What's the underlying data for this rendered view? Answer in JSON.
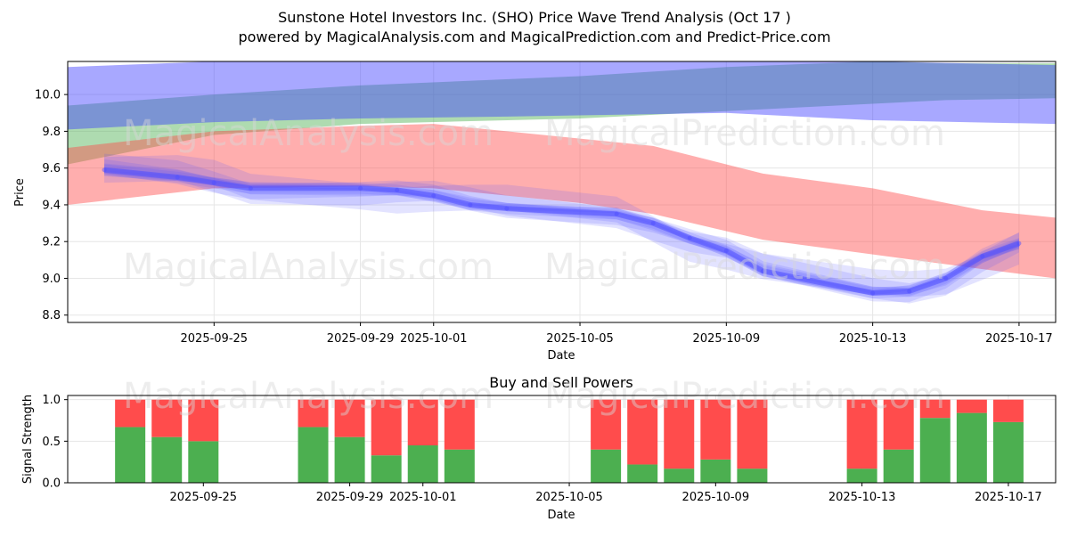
{
  "title_line1": "Sunstone Hotel Investors Inc. (SHO) Price Wave Trend Analysis (Oct 17 )",
  "title_line2": "powered by MagicalAnalysis.com and MagicalPrediction.com and Predict-Price.com",
  "watermarks": [
    "MagicalAnalysis.com",
    "MagicalPrediction.com"
  ],
  "colors": {
    "green_band": "#4caf50",
    "blue_band": "#3f3fff",
    "red_band": "#ff4c4c",
    "price_wave": "#5050ff",
    "buy": "#4caf50",
    "sell": "#ff4c4c",
    "grid": "#e6e6e6"
  },
  "chart_data": [
    {
      "type": "line",
      "title": "",
      "xlabel": "Date",
      "ylabel": "Price",
      "xlim": [
        "2025-09-21",
        "2025-10-18"
      ],
      "ylim": [
        8.76,
        10.18
      ],
      "yticks": [
        8.8,
        9.0,
        9.2,
        9.4,
        9.6,
        9.8,
        10.0
      ],
      "ytick_labels": [
        "8.8",
        "9.0",
        "9.2",
        "9.4",
        "9.6",
        "9.8",
        "10.0"
      ],
      "xticks": [
        "2025-09-25",
        "2025-09-29",
        "2025-10-01",
        "2025-10-05",
        "2025-10-09",
        "2025-10-13",
        "2025-10-17"
      ],
      "grid": true,
      "bands": [
        {
          "name": "green",
          "x": [
            "2025-09-21",
            "2025-09-25",
            "2025-09-29",
            "2025-10-05",
            "2025-10-09",
            "2025-10-13",
            "2025-10-15",
            "2025-10-18"
          ],
          "upper": [
            9.94,
            10.0,
            10.05,
            10.1,
            10.15,
            10.18,
            10.17,
            10.17
          ],
          "lower": [
            9.62,
            9.78,
            9.84,
            9.87,
            9.91,
            9.95,
            9.97,
            9.98
          ]
        },
        {
          "name": "blue",
          "x": [
            "2025-09-21",
            "2025-09-25",
            "2025-09-29",
            "2025-10-03",
            "2025-10-09",
            "2025-10-13",
            "2025-10-18"
          ],
          "upper": [
            10.15,
            10.18,
            10.2,
            10.2,
            10.2,
            10.18,
            10.16
          ],
          "lower": [
            9.81,
            9.85,
            9.87,
            9.88,
            9.9,
            9.86,
            9.84
          ]
        },
        {
          "name": "red",
          "x": [
            "2025-09-21",
            "2025-09-25",
            "2025-09-29",
            "2025-10-01",
            "2025-10-05",
            "2025-10-07",
            "2025-10-10",
            "2025-10-13",
            "2025-10-16",
            "2025-10-18"
          ],
          "upper": [
            9.71,
            9.8,
            9.83,
            9.84,
            9.76,
            9.72,
            9.57,
            9.49,
            9.37,
            9.33
          ],
          "lower": [
            9.4,
            9.49,
            9.5,
            9.49,
            9.41,
            9.35,
            9.21,
            9.13,
            9.05,
            9.0
          ]
        }
      ],
      "series": [
        {
          "name": "price wave",
          "x": [
            "2025-09-22",
            "2025-09-24",
            "2025-09-25",
            "2025-09-26",
            "2025-09-29",
            "2025-09-30",
            "2025-10-01",
            "2025-10-02",
            "2025-10-03",
            "2025-10-06",
            "2025-10-07",
            "2025-10-08",
            "2025-10-09",
            "2025-10-10",
            "2025-10-13",
            "2025-10-14",
            "2025-10-15",
            "2025-10-16",
            "2025-10-17"
          ],
          "values": [
            9.59,
            9.55,
            9.52,
            9.49,
            9.49,
            9.48,
            9.45,
            9.4,
            9.38,
            9.35,
            9.3,
            9.22,
            9.15,
            9.04,
            8.92,
            8.93,
            9.0,
            9.12,
            9.19
          ]
        }
      ]
    },
    {
      "type": "bar",
      "title": "Buy and Sell Powers",
      "xlabel": "Date",
      "ylabel": "Signal Strength",
      "ylim": [
        0,
        1.05
      ],
      "yticks": [
        0.0,
        0.5,
        1.0
      ],
      "ytick_labels": [
        "0.0",
        "0.5",
        "1.0"
      ],
      "xticks": [
        "2025-09-25",
        "2025-09-29",
        "2025-10-01",
        "2025-10-05",
        "2025-10-09",
        "2025-10-13",
        "2025-10-17"
      ],
      "grid": true,
      "categories": [
        "2025-09-23",
        "2025-09-24",
        "2025-09-25",
        "2025-09-28",
        "2025-09-29",
        "2025-09-30",
        "2025-10-01",
        "2025-10-02",
        "2025-10-06",
        "2025-10-07",
        "2025-10-08",
        "2025-10-09",
        "2025-10-10",
        "2025-10-13",
        "2025-10-14",
        "2025-10-15",
        "2025-10-16",
        "2025-10-17"
      ],
      "series": [
        {
          "name": "Buy",
          "values": [
            0.67,
            0.55,
            0.5,
            0.67,
            0.55,
            0.33,
            0.45,
            0.4,
            0.4,
            0.22,
            0.17,
            0.28,
            0.17,
            0.17,
            0.4,
            0.78,
            0.84,
            0.73
          ]
        },
        {
          "name": "Sell",
          "values": [
            0.33,
            0.45,
            0.5,
            0.33,
            0.45,
            0.67,
            0.55,
            0.6,
            0.6,
            0.78,
            0.83,
            0.72,
            0.83,
            0.83,
            0.6,
            0.22,
            0.16,
            0.27
          ]
        }
      ]
    }
  ]
}
